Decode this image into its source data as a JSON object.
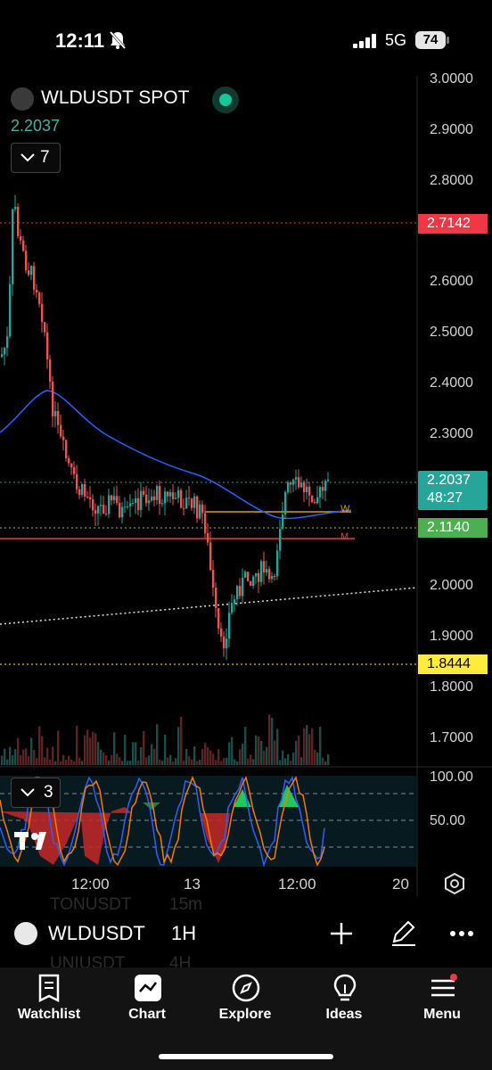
{
  "status_bar": {
    "time": "12:11",
    "network": "5G",
    "battery": "74"
  },
  "chart": {
    "symbol_title": "WLDUSDT SPOT",
    "last_price": "2.2037",
    "indicator_count": "7",
    "y_axis": [
      "3.0000",
      "2.9000",
      "2.8000",
      "2.6000",
      "2.5000",
      "2.4000",
      "2.3000",
      "2.0000",
      "1.9000",
      "1.8000",
      "1.7000"
    ],
    "price_tags": {
      "high_line": "2.7142",
      "current": "2.2037",
      "countdown": "48:27",
      "support": "2.1140",
      "low_line": "1.8444"
    },
    "colors": {
      "up": "#26a69a",
      "down": "#ef5350",
      "ma": "#2962ff",
      "accent_green": "#26a69a",
      "red_tag": "#f23645",
      "green_tag": "#4caf50",
      "yellow_tag": "#ffeb3b"
    }
  },
  "oscillator": {
    "count": "3",
    "y_axis": [
      "100.00",
      "50.00"
    ]
  },
  "x_axis": [
    "12:00",
    "13",
    "12:00",
    "20"
  ],
  "symbol_bar": {
    "symbol": "WLDUSDT",
    "interval": "1H",
    "ghost_above": [
      "TONUSDT",
      "15m"
    ],
    "ghost_below": [
      "UNIUSDT",
      "4H"
    ]
  },
  "nav": [
    {
      "label": "Watchlist",
      "icon": "watchlist-icon"
    },
    {
      "label": "Chart",
      "icon": "chart-icon"
    },
    {
      "label": "Explore",
      "icon": "compass-icon"
    },
    {
      "label": "Ideas",
      "icon": "lightbulb-icon"
    },
    {
      "label": "Menu",
      "icon": "hamburger-icon"
    }
  ]
}
